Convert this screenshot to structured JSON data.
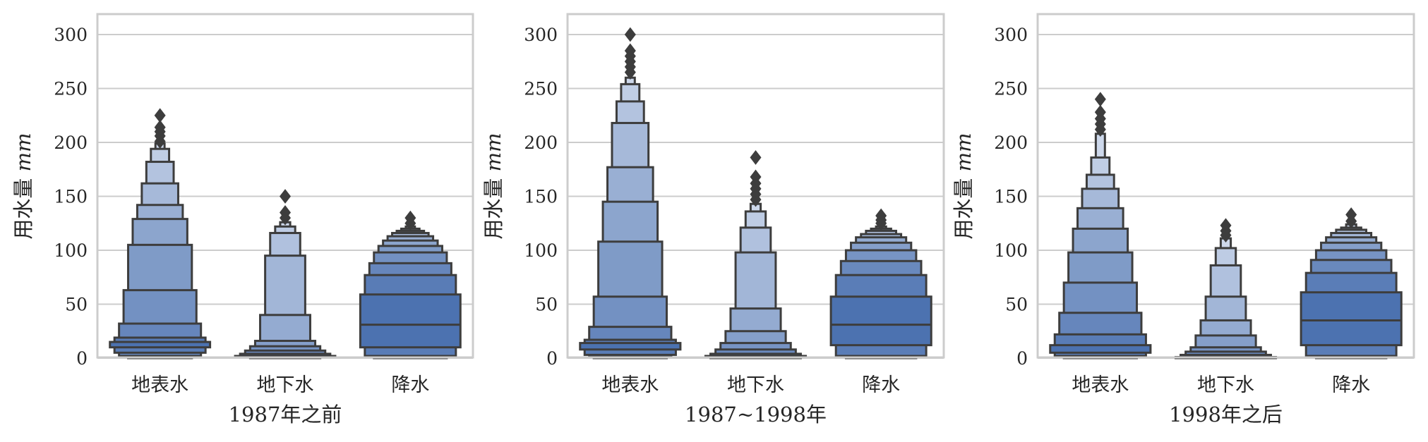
{
  "chart_data": [
    {
      "type": "boxen",
      "xlabel": "1987年之前",
      "ylabel": "用水量",
      "ylabel_unit": "mm",
      "categories": [
        "地表水",
        "地下水",
        "降水"
      ],
      "ylim": [
        0,
        320
      ],
      "yticks": [
        0,
        50,
        100,
        150,
        200,
        250,
        300
      ],
      "grid": true,
      "boxes": [
        {
          "levels": [
            [
              10,
              15
            ],
            [
              5,
              19
            ],
            [
              2,
              32
            ],
            [
              1,
              63
            ],
            [
              0,
              105
            ],
            [
              0,
              129
            ],
            [
              0,
              142
            ],
            [
              0,
              162
            ],
            [
              0,
              182
            ],
            [
              0,
              194
            ],
            [
              0,
              199
            ]
          ],
          "outliers": [
            201,
            206,
            210,
            214,
            225
          ]
        },
        {
          "levels": [
            [
              1,
              2
            ],
            [
              1,
              4
            ],
            [
              1,
              7
            ],
            [
              0,
              11
            ],
            [
              0,
              16
            ],
            [
              0,
              40
            ],
            [
              0,
              95
            ],
            [
              0,
              116
            ],
            [
              0,
              122
            ],
            [
              0,
              126
            ]
          ],
          "outliers": [
            130,
            135,
            150
          ]
        },
        {
          "median": 31,
          "levels": [
            [
              10,
              59
            ],
            [
              2,
              77
            ],
            [
              1,
              88
            ],
            [
              0,
              98
            ],
            [
              0,
              104
            ],
            [
              0,
              109
            ],
            [
              0,
              113
            ],
            [
              0,
              116
            ],
            [
              0,
              118
            ],
            [
              0,
              120
            ],
            [
              0,
              122
            ]
          ],
          "outliers": [
            125,
            130
          ]
        }
      ]
    },
    {
      "type": "boxen",
      "xlabel": "1987~1998年",
      "ylabel": "用水量",
      "ylabel_unit": "mm",
      "categories": [
        "地表水",
        "地下水",
        "降水"
      ],
      "ylim": [
        0,
        320
      ],
      "yticks": [
        0,
        50,
        100,
        150,
        200,
        250,
        300
      ],
      "grid": true,
      "boxes": [
        {
          "levels": [
            [
              8,
              14
            ],
            [
              3,
              17
            ],
            [
              1,
              29
            ],
            [
              0,
              57
            ],
            [
              0,
              108
            ],
            [
              0,
              145
            ],
            [
              0,
              177
            ],
            [
              0,
              218
            ],
            [
              0,
              238
            ],
            [
              0,
              254
            ],
            [
              0,
              260
            ]
          ],
          "outliers": [
            265,
            270,
            275,
            280,
            285,
            300
          ]
        },
        {
          "levels": [
            [
              1,
              2
            ],
            [
              0,
              4
            ],
            [
              0,
              8
            ],
            [
              0,
              14
            ],
            [
              0,
              25
            ],
            [
              0,
              46
            ],
            [
              0,
              98
            ],
            [
              0,
              121
            ],
            [
              0,
              136
            ],
            [
              0,
              143
            ]
          ],
          "outliers": [
            147,
            152,
            157,
            162,
            168,
            186
          ]
        },
        {
          "median": 31,
          "levels": [
            [
              12,
              57
            ],
            [
              2,
              77
            ],
            [
              1,
              90
            ],
            [
              0,
              100
            ],
            [
              0,
              107
            ],
            [
              0,
              112
            ],
            [
              0,
              115
            ],
            [
              0,
              118
            ],
            [
              0,
              120
            ],
            [
              0,
              122
            ]
          ],
          "outliers": [
            125,
            128,
            132
          ]
        }
      ]
    },
    {
      "type": "boxen",
      "xlabel": "1998年之后",
      "ylabel": "用水量",
      "ylabel_unit": "mm",
      "categories": [
        "地表水",
        "地下水",
        "降水"
      ],
      "ylim": [
        0,
        320
      ],
      "yticks": [
        0,
        50,
        100,
        150,
        200,
        250,
        300
      ],
      "grid": true,
      "boxes": [
        {
          "levels": [
            [
              5,
              12
            ],
            [
              2,
              22
            ],
            [
              1,
              42
            ],
            [
              0,
              70
            ],
            [
              0,
              98
            ],
            [
              0,
              120
            ],
            [
              0,
              139
            ],
            [
              0,
              157
            ],
            [
              0,
              170
            ],
            [
              0,
              186
            ],
            [
              0,
              208
            ]
          ],
          "outliers": [
            212,
            217,
            222,
            228,
            240
          ]
        },
        {
          "levels": [
            [
              0,
              1
            ],
            [
              0,
              3
            ],
            [
              0,
              6
            ],
            [
              0,
              10
            ],
            [
              0,
              21
            ],
            [
              0,
              35
            ],
            [
              0,
              57
            ],
            [
              0,
              86
            ],
            [
              0,
              102
            ],
            [
              0,
              111
            ]
          ],
          "outliers": [
            114,
            118,
            123
          ]
        },
        {
          "median": 35,
          "levels": [
            [
              12,
              61
            ],
            [
              2,
              79
            ],
            [
              1,
              91
            ],
            [
              0,
              100
            ],
            [
              0,
              107
            ],
            [
              0,
              112
            ],
            [
              0,
              116
            ],
            [
              0,
              119
            ],
            [
              0,
              121
            ],
            [
              0,
              124
            ]
          ],
          "outliers": [
            127,
            133
          ]
        }
      ]
    }
  ],
  "colors": {
    "base": "#4c72b0",
    "light": "#dbe3f1",
    "edge": "#3d3d3d",
    "grid": "#cccccc",
    "text": "#262626"
  }
}
